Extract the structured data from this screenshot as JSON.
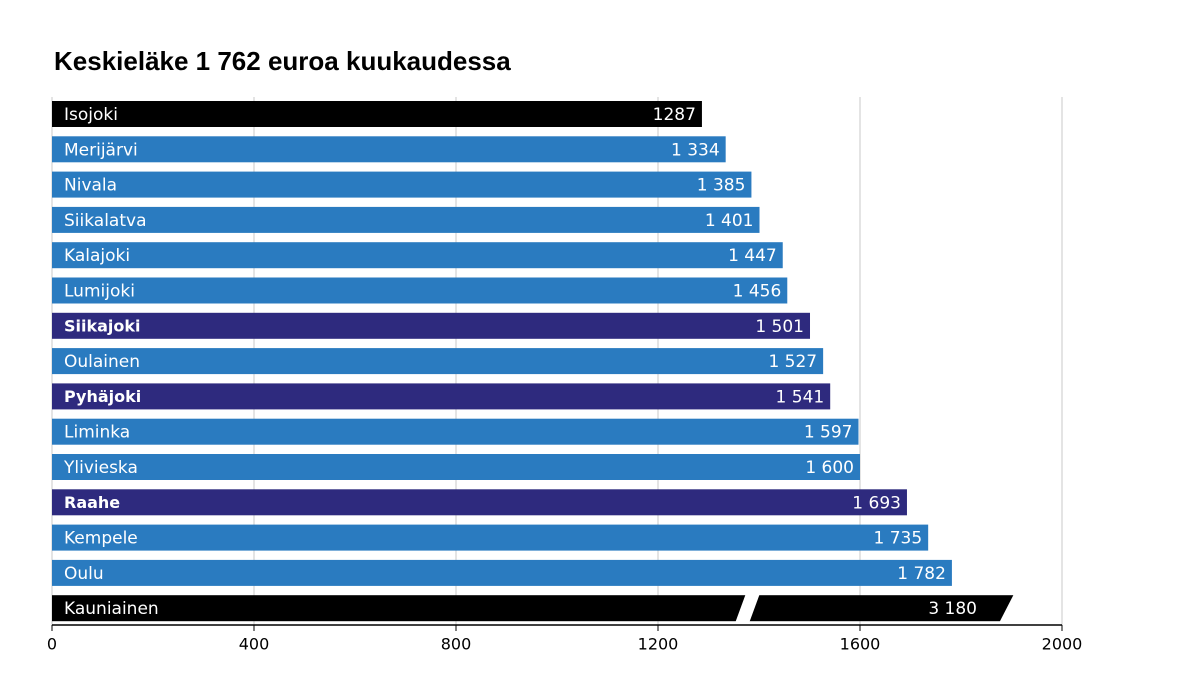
{
  "chart_data": {
    "type": "bar",
    "orientation": "horizontal",
    "title": "Keskieläke 1 762 euroa kuukaudessa",
    "categories": [
      "Isojoki",
      "Merijärvi",
      "Nivala",
      "Siikalatva",
      "Kalajoki",
      "Lumijoki",
      "Siikajoki",
      "Oulainen",
      "Pyhäjoki",
      "Liminka",
      "Ylivieska",
      "Raahe",
      "Kempele",
      "Oulu",
      "Kauniainen"
    ],
    "values": [
      1287,
      1334,
      1385,
      1401,
      1447,
      1456,
      1501,
      1527,
      1541,
      1597,
      1600,
      1693,
      1735,
      1782,
      3180
    ],
    "value_labels": [
      "1287",
      "1 334",
      "1 385",
      "1 401",
      "1 447",
      "1 456",
      "1 501",
      "1 527",
      "1 541",
      "1 597",
      "1 600",
      "1 693",
      "1 735",
      "1 782",
      "3 180"
    ],
    "colors": [
      "#000000",
      "#2a7bc0",
      "#2a7bc0",
      "#2a7bc0",
      "#2a7bc0",
      "#2a7bc0",
      "#2e2a7e",
      "#2a7bc0",
      "#2e2a7e",
      "#2a7bc0",
      "#2a7bc0",
      "#2e2a7e",
      "#2a7bc0",
      "#2a7bc0",
      "#000000"
    ],
    "highlight_color": "#2e2a7e",
    "axis_break": true,
    "xlim": [
      0,
      2000
    ],
    "xticks": [
      0,
      400,
      800,
      1200,
      1600,
      2000
    ],
    "grid": true
  }
}
